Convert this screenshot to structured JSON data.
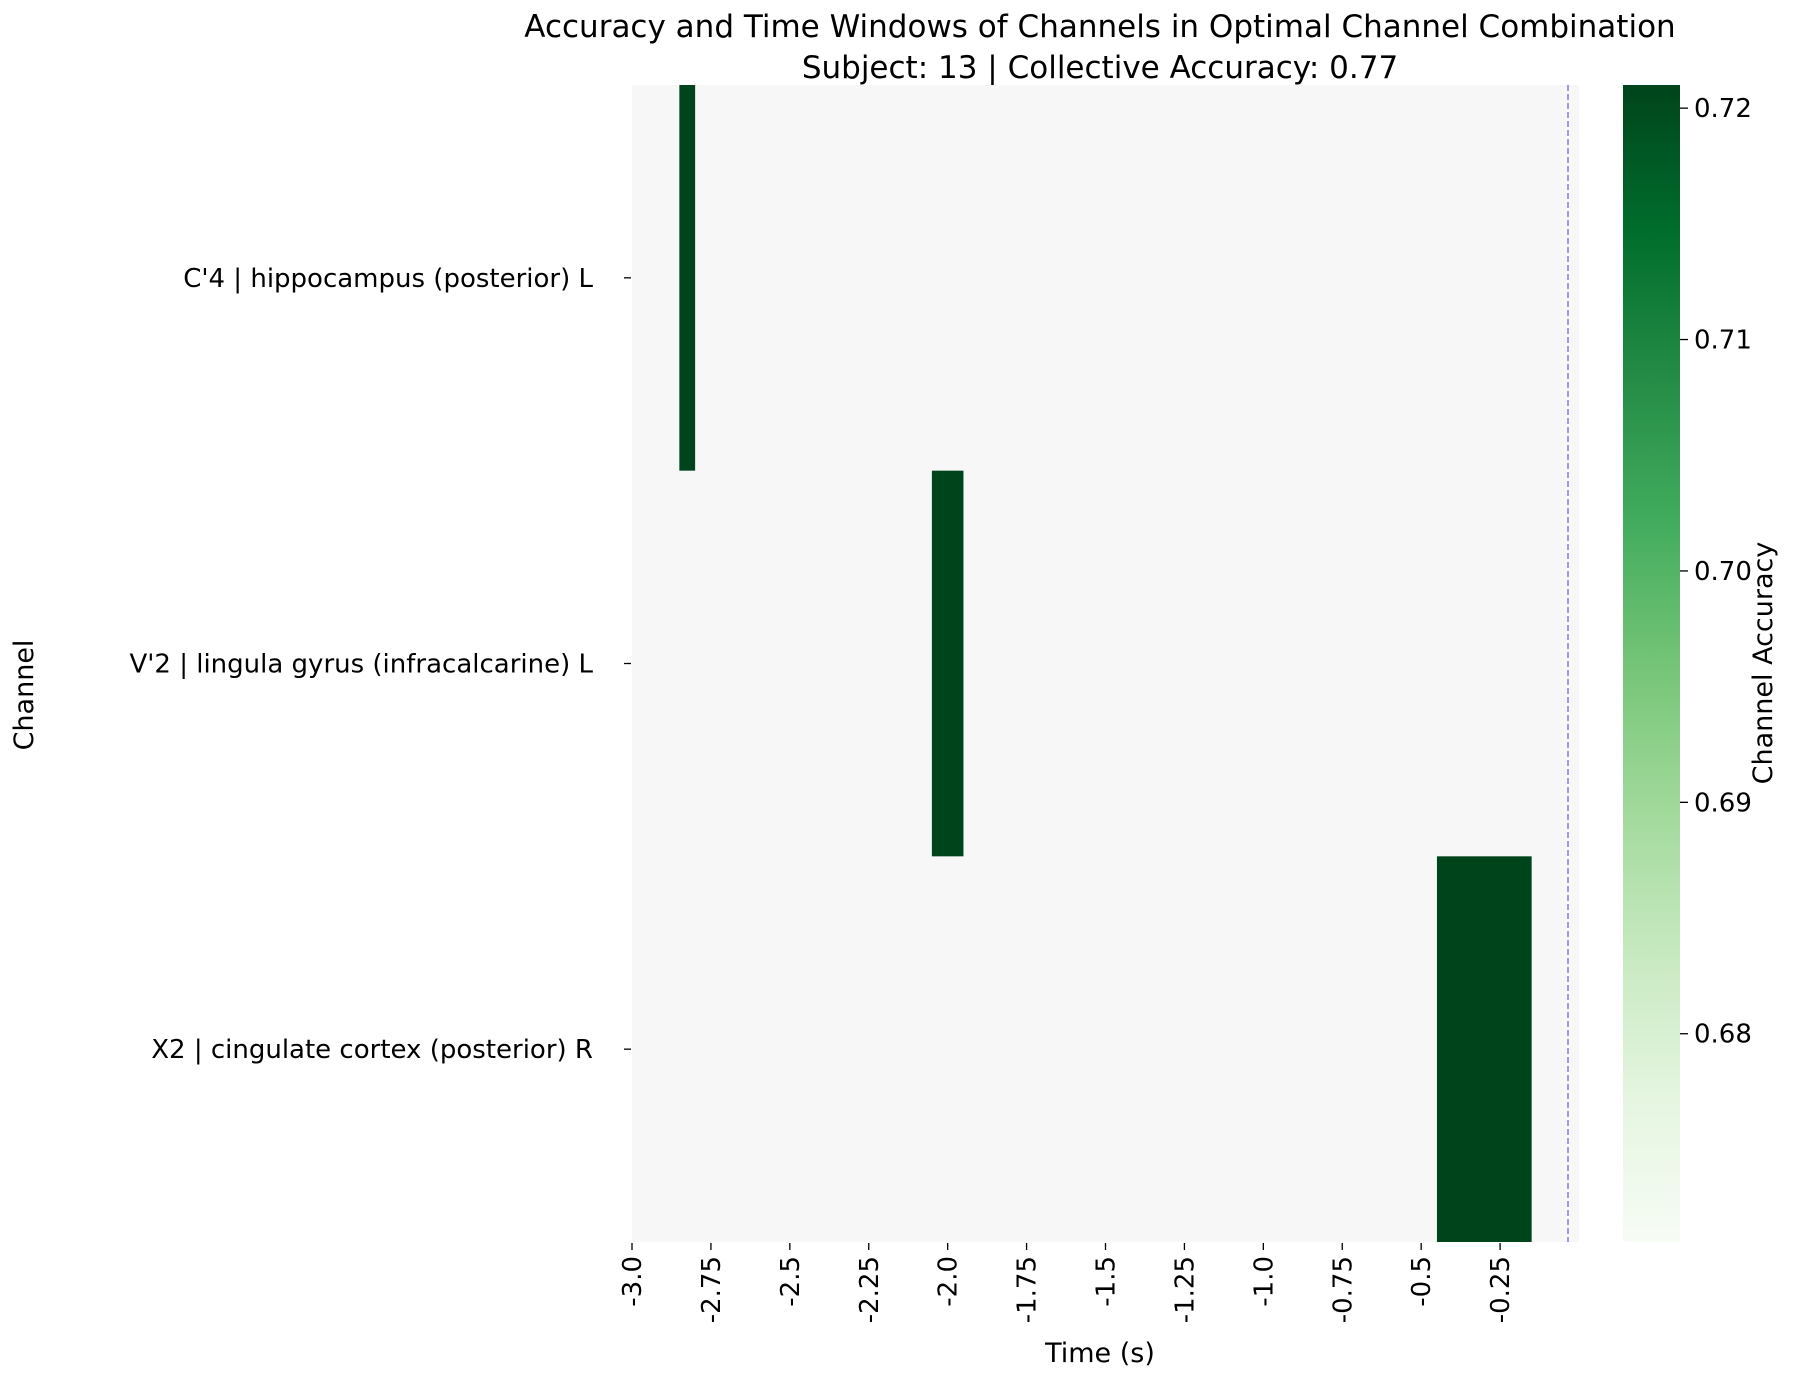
{
  "chart_data": {
    "type": "heatmap",
    "title": "Accuracy and Time Windows of Channels in Optimal Channel Combination",
    "subtitle": "Subject: 13 | Collective Accuracy: 0.77",
    "xlabel": "Time (s)",
    "ylabel": "Channel",
    "xlim": [
      -3.0,
      0.0
    ],
    "x_ticks": [
      -3.0,
      -2.75,
      -2.5,
      -2.25,
      -2.0,
      -1.75,
      -1.5,
      -1.25,
      -1.0,
      -0.75,
      -0.5,
      -0.25
    ],
    "x_tick_labels": [
      "-3.0",
      "-2.75",
      "-2.5",
      "-2.25",
      "-2.0",
      "-1.75",
      "-1.5",
      "-1.25",
      "-1.0",
      "-0.75",
      "-0.5",
      "-0.25"
    ],
    "channels": [
      "C'4 | hippocampus (posterior) L",
      "V'2 | lingula gyrus (infracalcarine) L",
      "X2 | cingulate cortex (posterior) R"
    ],
    "windows": [
      {
        "channel": "C'4 | hippocampus (posterior) L",
        "start": -2.85,
        "end": -2.8,
        "accuracy": 0.721
      },
      {
        "channel": "V'2 | lingula gyrus (infracalcarine) L",
        "start": -2.05,
        "end": -1.95,
        "accuracy": 0.721
      },
      {
        "channel": "X2 | cingulate cortex (posterior) R",
        "start": -0.45,
        "end": -0.15,
        "accuracy": 0.721
      }
    ],
    "reference_line": {
      "x": 0.0,
      "style": "dashed",
      "color": "#6b6bd6"
    },
    "background_color": "#f7f7f7",
    "colorbar": {
      "label": "Channel Accuracy",
      "range": [
        0.671,
        0.721
      ],
      "ticks": [
        0.68,
        0.69,
        0.7,
        0.71,
        0.72
      ],
      "tick_labels": [
        "0.68",
        "0.69",
        "0.70",
        "0.71",
        "0.72"
      ],
      "colormap": "Greens",
      "colors": [
        "#f7fcf5",
        "#e5f5e0",
        "#c7e9c0",
        "#a1d99b",
        "#74c476",
        "#41ab5d",
        "#238b45",
        "#006d2c",
        "#00441b"
      ]
    },
    "grid": false
  }
}
